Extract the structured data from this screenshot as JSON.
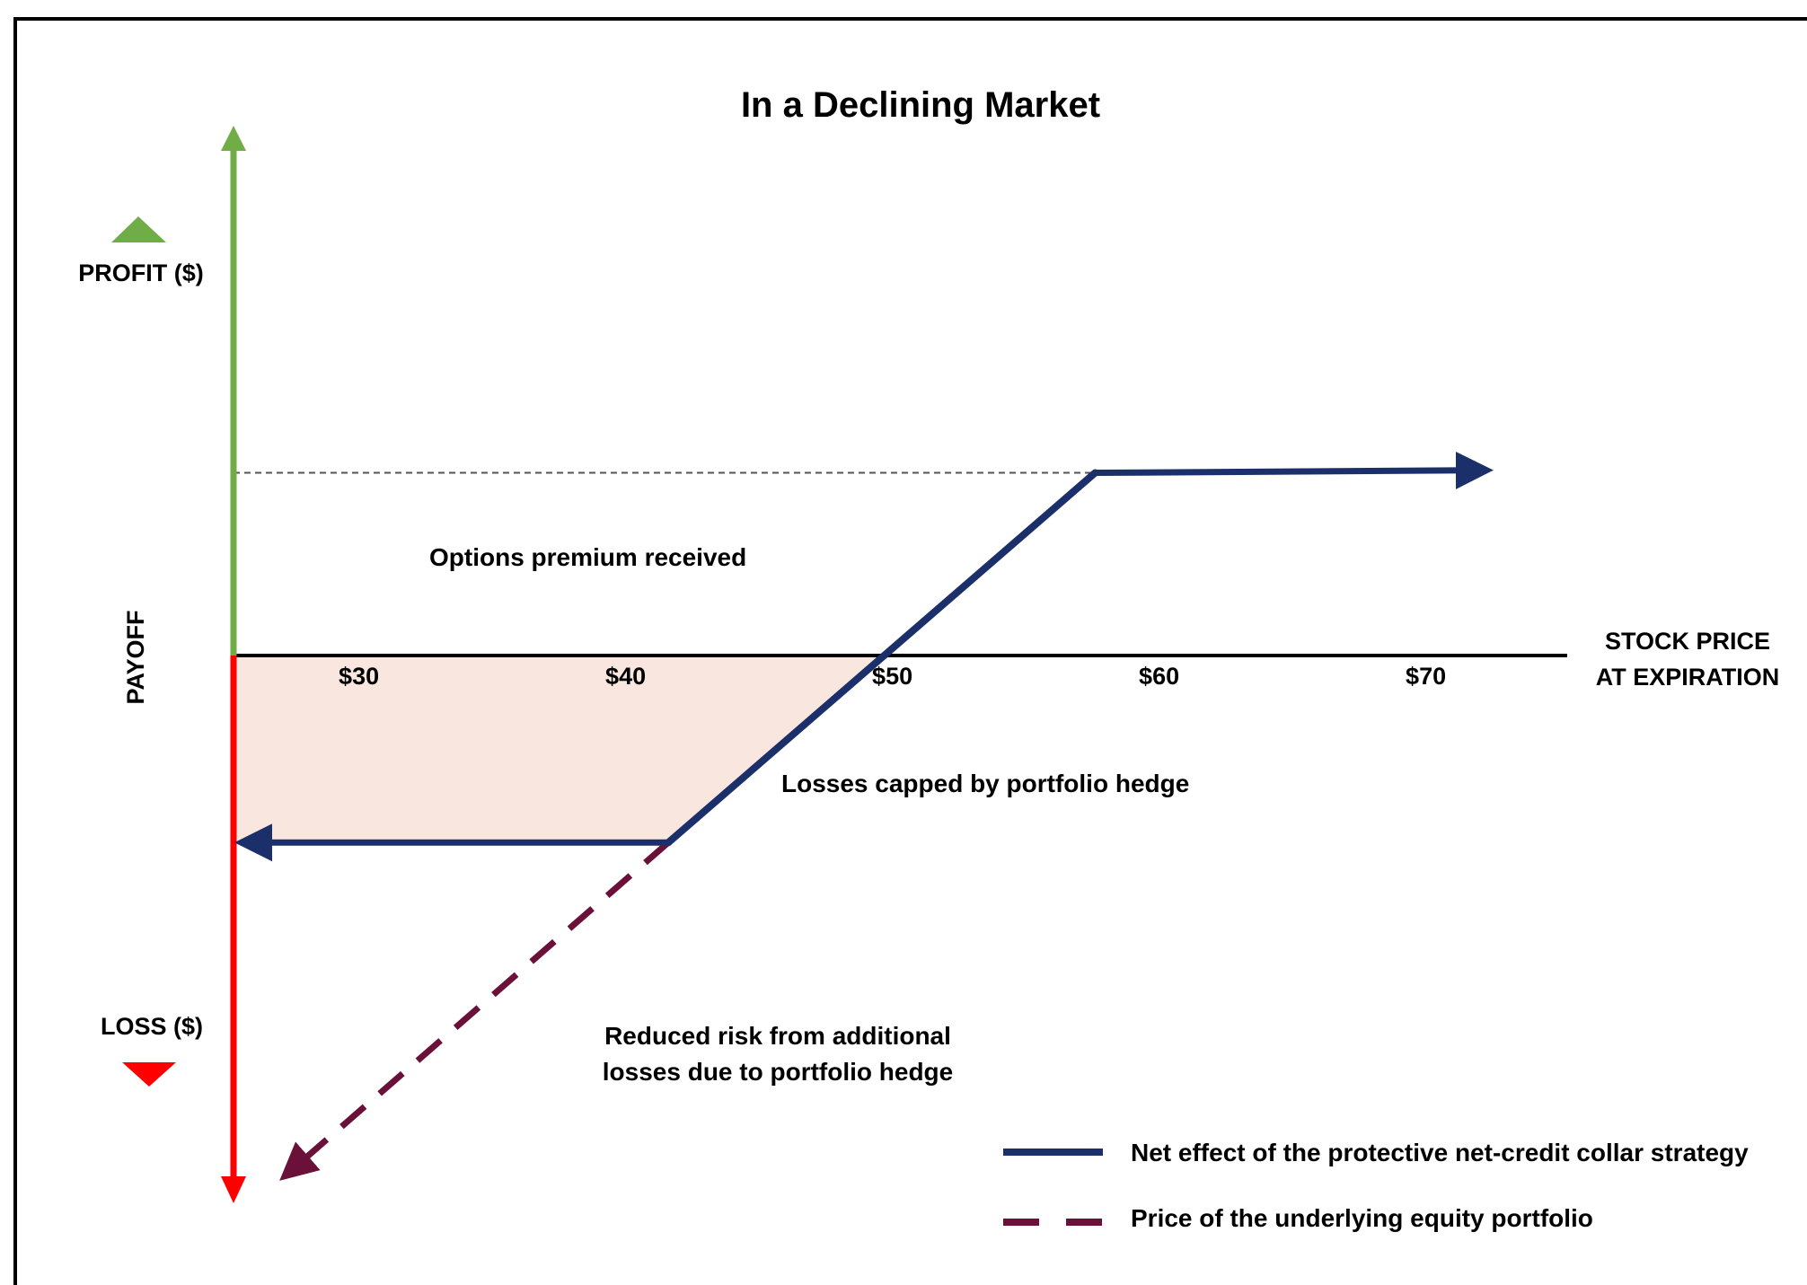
{
  "chart_data": {
    "type": "line",
    "title": "In a Declining Market",
    "xlabel": [
      "STOCK PRICE",
      "AT EXPIRATION"
    ],
    "ylabel": "PAYOFF",
    "y_positive_label": "PROFIT ($)",
    "y_negative_label": "LOSS ($)",
    "categories": [
      "$30",
      "$40",
      "$50",
      "$60",
      "$70"
    ],
    "x_ticks": [
      30,
      40,
      50,
      60,
      70
    ],
    "xlim": [
      25.3,
      75.3
    ],
    "ylim": [
      -20.5,
      20.3
    ],
    "grid": false,
    "legend_position": "bottom-right",
    "colors": {
      "net": "#1b2f6b",
      "underlying": "#6b1038",
      "profit_axis": "#70ad47",
      "loss_axis": "#ff0000",
      "loss_fill": "#f8e6df",
      "premium_guide": "#555555"
    },
    "series": [
      {
        "name": "Net effect of the protective net-credit collar strategy",
        "style": "solid",
        "x": [
          25.3,
          41.6,
          57.6,
          72.3
        ],
        "y": [
          -7.0,
          -7.0,
          7.0,
          7.1
        ]
      },
      {
        "name": "Price of the underlying equity portfolio",
        "style": "dashed",
        "x": [
          41.6,
          27.2
        ],
        "y": [
          -7.0,
          -19.5
        ]
      }
    ],
    "premium_level": 7.0,
    "annotations": [
      "Options premium received",
      "Losses capped by portfolio hedge",
      "Reduced risk from additional",
      "losses due to portfolio hedge"
    ]
  }
}
